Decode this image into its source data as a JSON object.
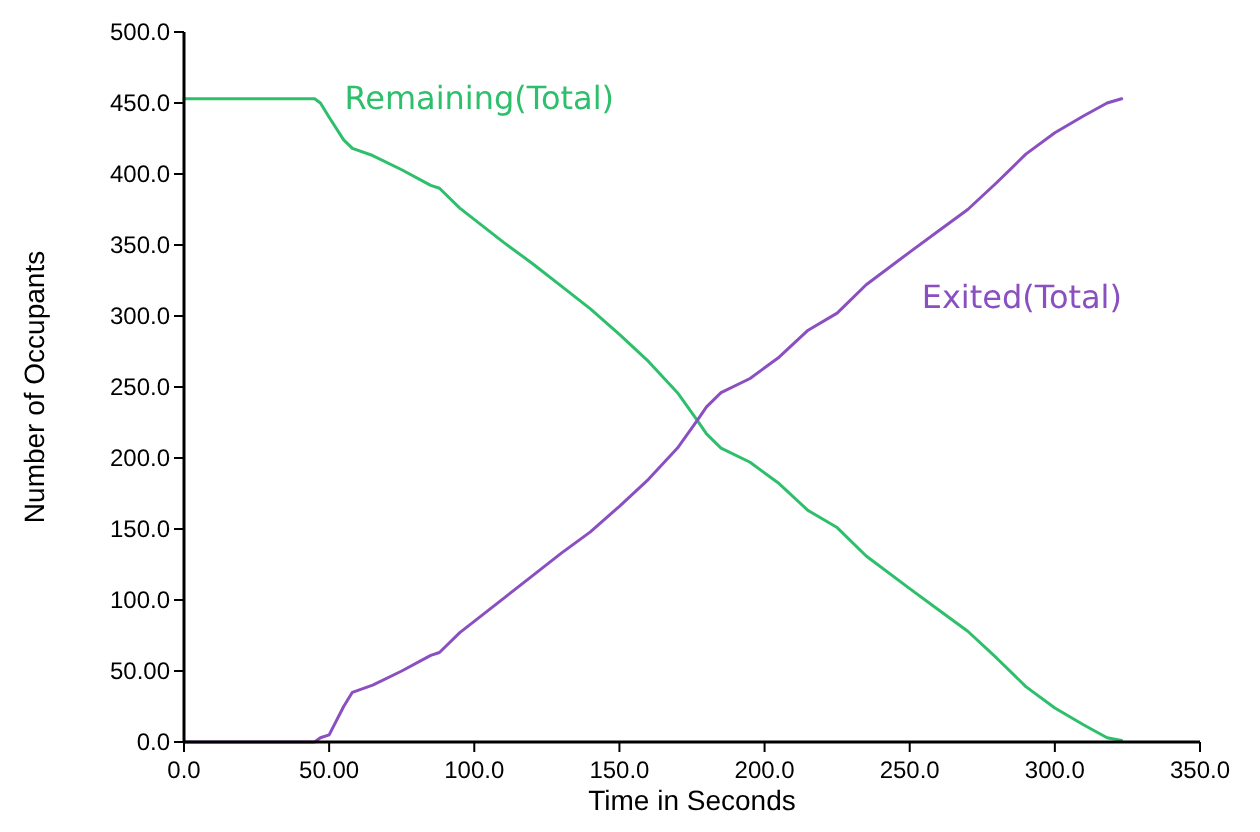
{
  "chart_data": {
    "type": "line",
    "xlabel": "Time in Seconds",
    "ylabel": "Number of Occupants",
    "xlim": [
      0,
      350
    ],
    "ylim": [
      0,
      500
    ],
    "xticks": [
      {
        "value": 0,
        "label": "0.0"
      },
      {
        "value": 50,
        "label": "50.00"
      },
      {
        "value": 100,
        "label": "100.0"
      },
      {
        "value": 150,
        "label": "150.0"
      },
      {
        "value": 200,
        "label": "200.0"
      },
      {
        "value": 250,
        "label": "250.0"
      },
      {
        "value": 300,
        "label": "300.0"
      },
      {
        "value": 350,
        "label": "350.0"
      }
    ],
    "yticks": [
      {
        "value": 0,
        "label": "0.0"
      },
      {
        "value": 50,
        "label": "50.00"
      },
      {
        "value": 100,
        "label": "100.0"
      },
      {
        "value": 150,
        "label": "150.0"
      },
      {
        "value": 200,
        "label": "200.0"
      },
      {
        "value": 250,
        "label": "250.0"
      },
      {
        "value": 300,
        "label": "300.0"
      },
      {
        "value": 350,
        "label": "350.0"
      },
      {
        "value": 400,
        "label": "400.0"
      },
      {
        "value": 450,
        "label": "450.0"
      },
      {
        "value": 500,
        "label": "500.0"
      }
    ],
    "grid": false,
    "marker": "none",
    "line_style": "solid",
    "x": [
      0,
      45,
      47,
      50,
      55,
      58,
      65,
      75,
      85,
      88,
      95,
      110,
      120,
      130,
      140,
      150,
      160,
      170,
      177,
      180,
      185,
      195,
      205,
      215,
      225,
      235,
      250,
      260,
      270,
      280,
      290,
      300,
      310,
      318,
      323
    ],
    "series": [
      {
        "name": "Remaining(Total)",
        "color": "#2dbf6b",
        "values": [
          453,
          453,
          450,
          440,
          424,
          418,
          413,
          403,
          392,
          390,
          376,
          352,
          337,
          321,
          305,
          287,
          268,
          246,
          226,
          217,
          207,
          197,
          182,
          163,
          151,
          131,
          108,
          93,
          78,
          59,
          39,
          24,
          12,
          3,
          1
        ]
      },
      {
        "name": "Exited(Total)",
        "color": "#8a4fc0",
        "values": [
          0,
          0,
          3,
          5,
          25,
          35,
          40,
          50,
          61,
          63,
          77,
          101,
          117,
          133,
          148,
          166,
          185,
          207,
          227,
          236,
          246,
          256,
          271,
          290,
          302,
          322,
          345,
          360,
          375,
          394,
          414,
          429,
          441,
          450,
          453
        ]
      }
    ]
  }
}
